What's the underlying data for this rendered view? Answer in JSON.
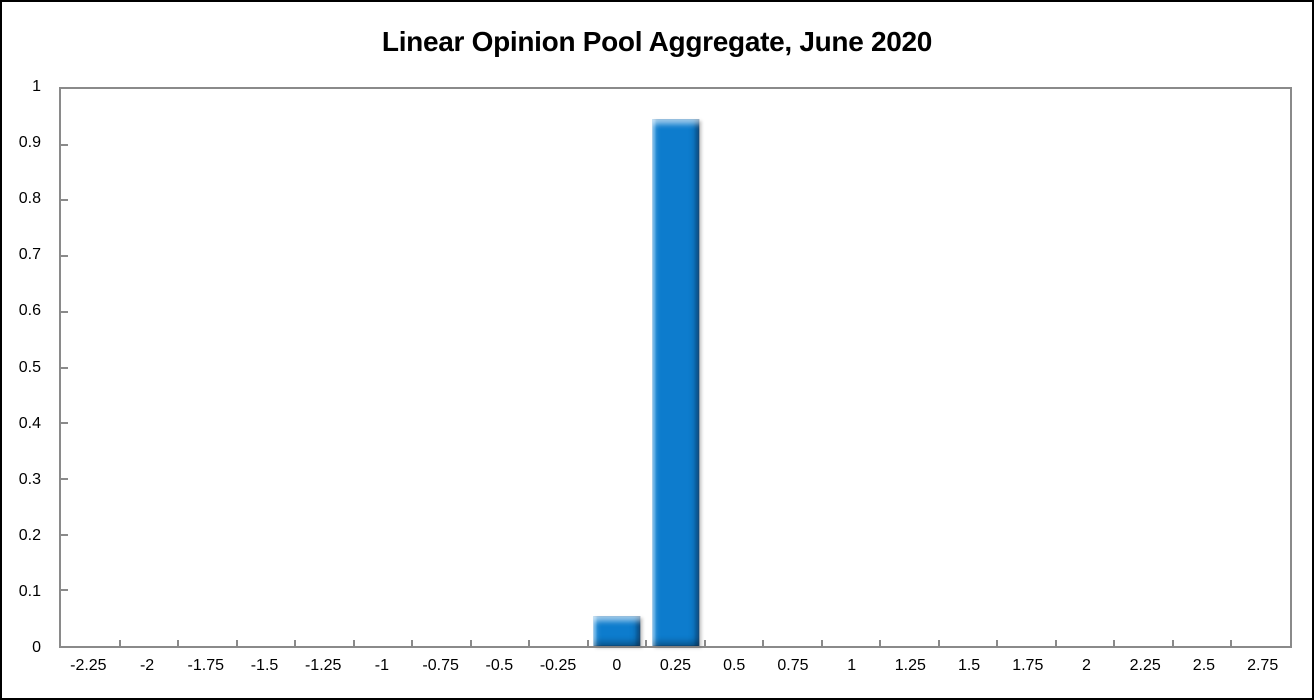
{
  "window": {
    "background": "#ffffff",
    "border_color": "#000000"
  },
  "chart_data": {
    "type": "bar",
    "title": "Linear Opinion Pool Aggregate, June 2020",
    "categories": [
      "-2.25",
      "-2",
      "-1.75",
      "-1.5",
      "-1.25",
      "-1",
      "-0.75",
      "-0.5",
      "-0.25",
      "0",
      "0.25",
      "0.5",
      "0.75",
      "1",
      "1.25",
      "1.5",
      "1.75",
      "2",
      "2.25",
      "2.5",
      "2.75"
    ],
    "values": [
      0,
      0,
      0,
      0,
      0,
      0,
      0,
      0,
      0,
      0.053,
      0.947,
      0,
      0,
      0,
      0,
      0,
      0,
      0,
      0,
      0,
      0
    ],
    "xlabel": "",
    "ylabel": "",
    "ylim": [
      0,
      1
    ],
    "y_ticks": [
      "0",
      "0.1",
      "0.2",
      "0.3",
      "0.4",
      "0.5",
      "0.6",
      "0.7",
      "0.8",
      "0.9",
      "1"
    ],
    "grid": false,
    "legend": false,
    "bar_width_fraction": 0.81,
    "bar_color": "#0d7ccd",
    "bar_highlight_color": "#6ec0f8",
    "bar_shadow_color": "#0a5fa6",
    "axis_color": "#8a8a8a",
    "text_color": "#000000"
  }
}
